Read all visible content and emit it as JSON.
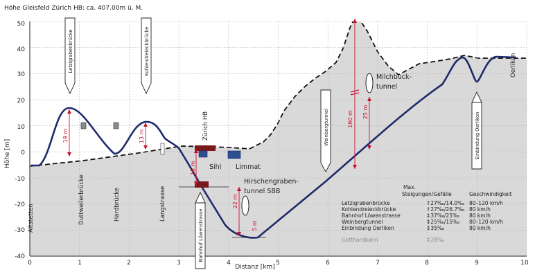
{
  "title": "Höhe Gleisfeld Zürich HB: ca. 407.00m ü. M.",
  "axes": {
    "ylabel": "Höhe [m]",
    "xlabel": "Distanz [km]",
    "y_ticks": [
      "50",
      "40",
      "30",
      "20",
      "10",
      "0",
      "-10",
      "-20",
      "-30",
      "-40"
    ],
    "x_ticks": [
      "0",
      "1",
      "2",
      "3",
      "4",
      "5",
      "6",
      "7",
      "8",
      "9",
      "10"
    ]
  },
  "places": {
    "altstetten": "Altstetten",
    "duttweiler": "Duttweilerbrücke",
    "hardbruecke": "Hardbrücke",
    "langstrasse": "Langstrasse",
    "zuerich_hb": "Zürich HB",
    "sihl": "Sihl",
    "limmat": "Limmat",
    "oerlikon": "Oerlikon"
  },
  "callouts": {
    "letzigraben": "Letzigrabenbrücke",
    "kohlendreieck": "Kohlendreieckbrücke",
    "weinberg": "Weinbergtunnel",
    "einbindung": "Einbindung Oerlikon",
    "bahnhof_loewen": "Bahnhof Löwenstrasse"
  },
  "tunnels": {
    "milchbuck": [
      "Milchbuck-",
      "tunnel"
    ],
    "hirschengraben": [
      "Hirschengraben-",
      "tunnel SBB"
    ]
  },
  "dimensions": [
    "19 m",
    "13 m",
    "16 m",
    "22 m",
    "5 m",
    "160 m",
    "25 m"
  ],
  "table": {
    "headers": {
      "max": "Max.",
      "grade": "Steigungen/Gefälle",
      "speed": "Geschwindigkeit"
    },
    "rows": [
      {
        "name": "Letzigrabenbrücke",
        "grade": "↑27‰/14.0‰",
        "speed": "80–120 km/h"
      },
      {
        "name": "Kohlendreieckbrücke",
        "grade": "↑27‰/26.7‰",
        "speed": "80 km/h"
      },
      {
        "name": "Bahnhof Löwenstrasse",
        "grade": "↕37‰/25‰",
        "speed": "80 km/h"
      },
      {
        "name": "Weinbergtunnel",
        "grade": "↕25‰/15‰",
        "speed": "80–120 km/h"
      },
      {
        "name": "Einbindung Oerlikon",
        "grade": "↕35‰",
        "speed": "80 km/h"
      }
    ],
    "gotthard": {
      "name": "Gotthardbahn",
      "grade": "↕28‰"
    }
  },
  "colors": {
    "track": "#1f2a6b",
    "terrain": "#d9d9d9",
    "dimension": "#c8102e",
    "bridge": "#7a1a1a",
    "river": "#2b4f8f"
  }
}
